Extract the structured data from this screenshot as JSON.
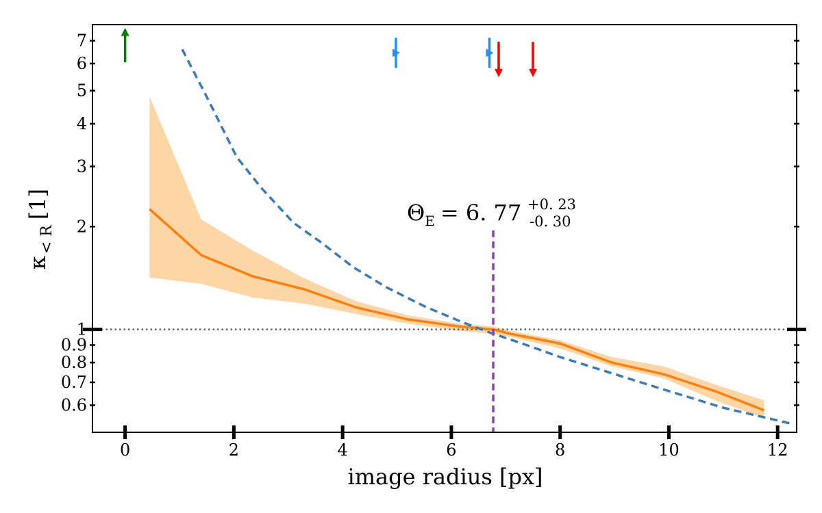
{
  "chart_data": {
    "type": "line",
    "xlabel": "image radius [px]",
    "ylabel": {
      "symbol": "κ",
      "subscript": "< R",
      "unit": "[1]"
    },
    "xlim": [
      -0.6,
      12.35
    ],
    "ylim": [
      0.5,
      7.8
    ],
    "yscale": "log",
    "xticks": [
      0,
      2,
      4,
      6,
      8,
      10,
      12
    ],
    "yticks": [
      0.6,
      0.7,
      0.8,
      0.9,
      1,
      2,
      3,
      4,
      5,
      6,
      7
    ],
    "grid": false,
    "series": [
      {
        "style": "solid",
        "color": "#ff7f0e",
        "x": [
          0.45,
          1.4,
          2.35,
          3.3,
          4.25,
          5.2,
          6.15,
          6.77,
          7.1,
          8.0,
          8.95,
          9.9,
          10.85,
          11.75
        ],
        "y": [
          2.25,
          1.65,
          1.43,
          1.31,
          1.16,
          1.07,
          1.02,
          1.0,
          0.97,
          0.91,
          0.8,
          0.74,
          0.66,
          0.58
        ]
      },
      {
        "style": "band",
        "color": "#fdd6a6",
        "x": [
          0.45,
          1.4,
          2.35,
          3.3,
          4.25,
          5.2,
          6.15,
          6.77,
          7.1,
          8.0,
          8.95,
          9.9,
          10.85,
          11.75
        ],
        "lower": [
          1.42,
          1.36,
          1.24,
          1.19,
          1.11,
          1.04,
          0.99,
          0.97,
          0.95,
          0.88,
          0.78,
          0.72,
          0.62,
          0.55
        ],
        "upper": [
          4.8,
          2.1,
          1.7,
          1.41,
          1.21,
          1.1,
          1.04,
          1.02,
          0.99,
          0.93,
          0.83,
          0.78,
          0.69,
          0.62
        ]
      },
      {
        "style": "dashed",
        "color": "#3b7bb5",
        "x": [
          1.05,
          1.5,
          2.05,
          2.5,
          3.1,
          3.6,
          4.2,
          4.8,
          5.5,
          6.2,
          6.7,
          7.3,
          8.0,
          9.0,
          10.0,
          11.0,
          12.25
        ],
        "y": [
          6.6,
          4.8,
          3.2,
          2.6,
          2.05,
          1.8,
          1.52,
          1.33,
          1.17,
          1.05,
          0.98,
          0.91,
          0.83,
          0.74,
          0.66,
          0.59,
          0.53
        ]
      }
    ],
    "reference_lines": {
      "horizontal": {
        "y": 1,
        "style": "dotted",
        "color": "#666666"
      },
      "vertical": {
        "x": 6.77,
        "y_to": 1.95,
        "style": "dashed",
        "color": "#8e44ad"
      }
    },
    "markers": [
      {
        "type": "arrow-up",
        "x": 0.0,
        "y": 6.05,
        "y2": 7.6,
        "color": "#008000"
      },
      {
        "type": "error-bar",
        "x": 4.98,
        "y": 6.45,
        "color": "#1e90ff"
      },
      {
        "type": "error-bar",
        "x": 6.7,
        "y": 6.45,
        "color": "#1e90ff"
      },
      {
        "type": "arrow-down",
        "x": 6.87,
        "y": 6.95,
        "y2": 5.5,
        "color": "#ff0000"
      },
      {
        "type": "arrow-down",
        "x": 7.5,
        "y": 6.95,
        "y2": 5.5,
        "color": "#ff0000"
      }
    ],
    "annotation": {
      "symbol": "Θ",
      "subscript": "E",
      "equals": "= 6. 77",
      "plus": "+0. 23",
      "minus": "-0. 30"
    }
  }
}
